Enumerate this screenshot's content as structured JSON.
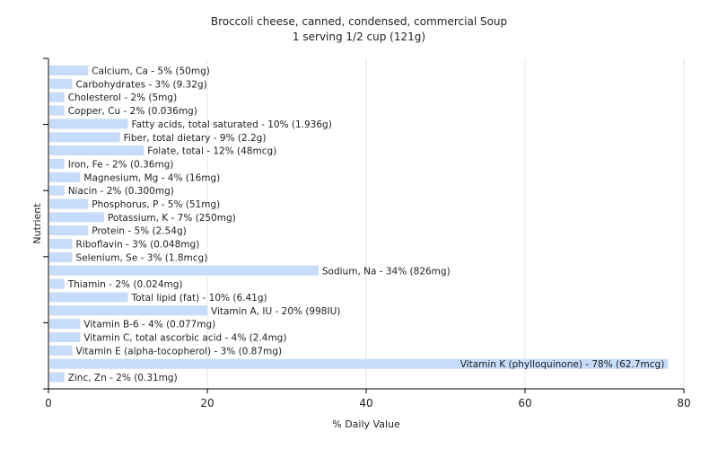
{
  "chart_data": {
    "type": "bar",
    "orientation": "horizontal",
    "title": "Broccoli cheese, canned, condensed, commercial Soup",
    "subtitle": "1 serving 1/2 cup (121g)",
    "xlabel": "% Daily Value",
    "ylabel": "Nutrient",
    "xlim": [
      0,
      80
    ],
    "xticks": [
      0,
      20,
      40,
      60,
      80
    ],
    "grid": true,
    "bar_color": "#c6dcfb",
    "categories": [
      "Calcium, Ca",
      "Carbohydrates",
      "Cholesterol",
      "Copper, Cu",
      "Fatty acids, total saturated",
      "Fiber, total dietary",
      "Folate, total",
      "Iron, Fe",
      "Magnesium, Mg",
      "Niacin",
      "Phosphorus, P",
      "Potassium, K",
      "Protein",
      "Riboflavin",
      "Selenium, Se",
      "Sodium, Na",
      "Thiamin",
      "Total lipid (fat)",
      "Vitamin A, IU",
      "Vitamin B-6",
      "Vitamin C, total ascorbic acid",
      "Vitamin E (alpha-tocopherol)",
      "Vitamin K (phylloquinone)",
      "Zinc, Zn"
    ],
    "values": [
      5,
      3,
      2,
      2,
      10,
      9,
      12,
      2,
      4,
      2,
      5,
      7,
      5,
      3,
      3,
      34,
      2,
      10,
      20,
      4,
      4,
      3,
      78,
      2
    ],
    "labels": [
      "Calcium, Ca - 5% (50mg)",
      "Carbohydrates - 3% (9.32g)",
      "Cholesterol - 2% (5mg)",
      "Copper, Cu - 2% (0.036mg)",
      "Fatty acids, total saturated - 10% (1.936g)",
      "Fiber, total dietary - 9% (2.2g)",
      "Folate, total - 12% (48mcg)",
      "Iron, Fe - 2% (0.36mg)",
      "Magnesium, Mg - 4% (16mg)",
      "Niacin - 2% (0.300mg)",
      "Phosphorus, P - 5% (51mg)",
      "Potassium, K - 7% (250mg)",
      "Protein - 5% (2.54g)",
      "Riboflavin - 3% (0.048mg)",
      "Selenium, Se - 3% (1.8mcg)",
      "Sodium, Na - 34% (826mg)",
      "Thiamin - 2% (0.024mg)",
      "Total lipid (fat) - 10% (6.41g)",
      "Vitamin A, IU - 20% (998IU)",
      "Vitamin B-6 - 4% (0.077mg)",
      "Vitamin C, total ascorbic acid - 4% (2.4mg)",
      "Vitamin E (alpha-tocopherol) - 3% (0.87mg)",
      "Vitamin K (phylloquinone) - 78% (62.7mcg)",
      "Zinc, Zn - 2% (0.31mg)"
    ]
  }
}
